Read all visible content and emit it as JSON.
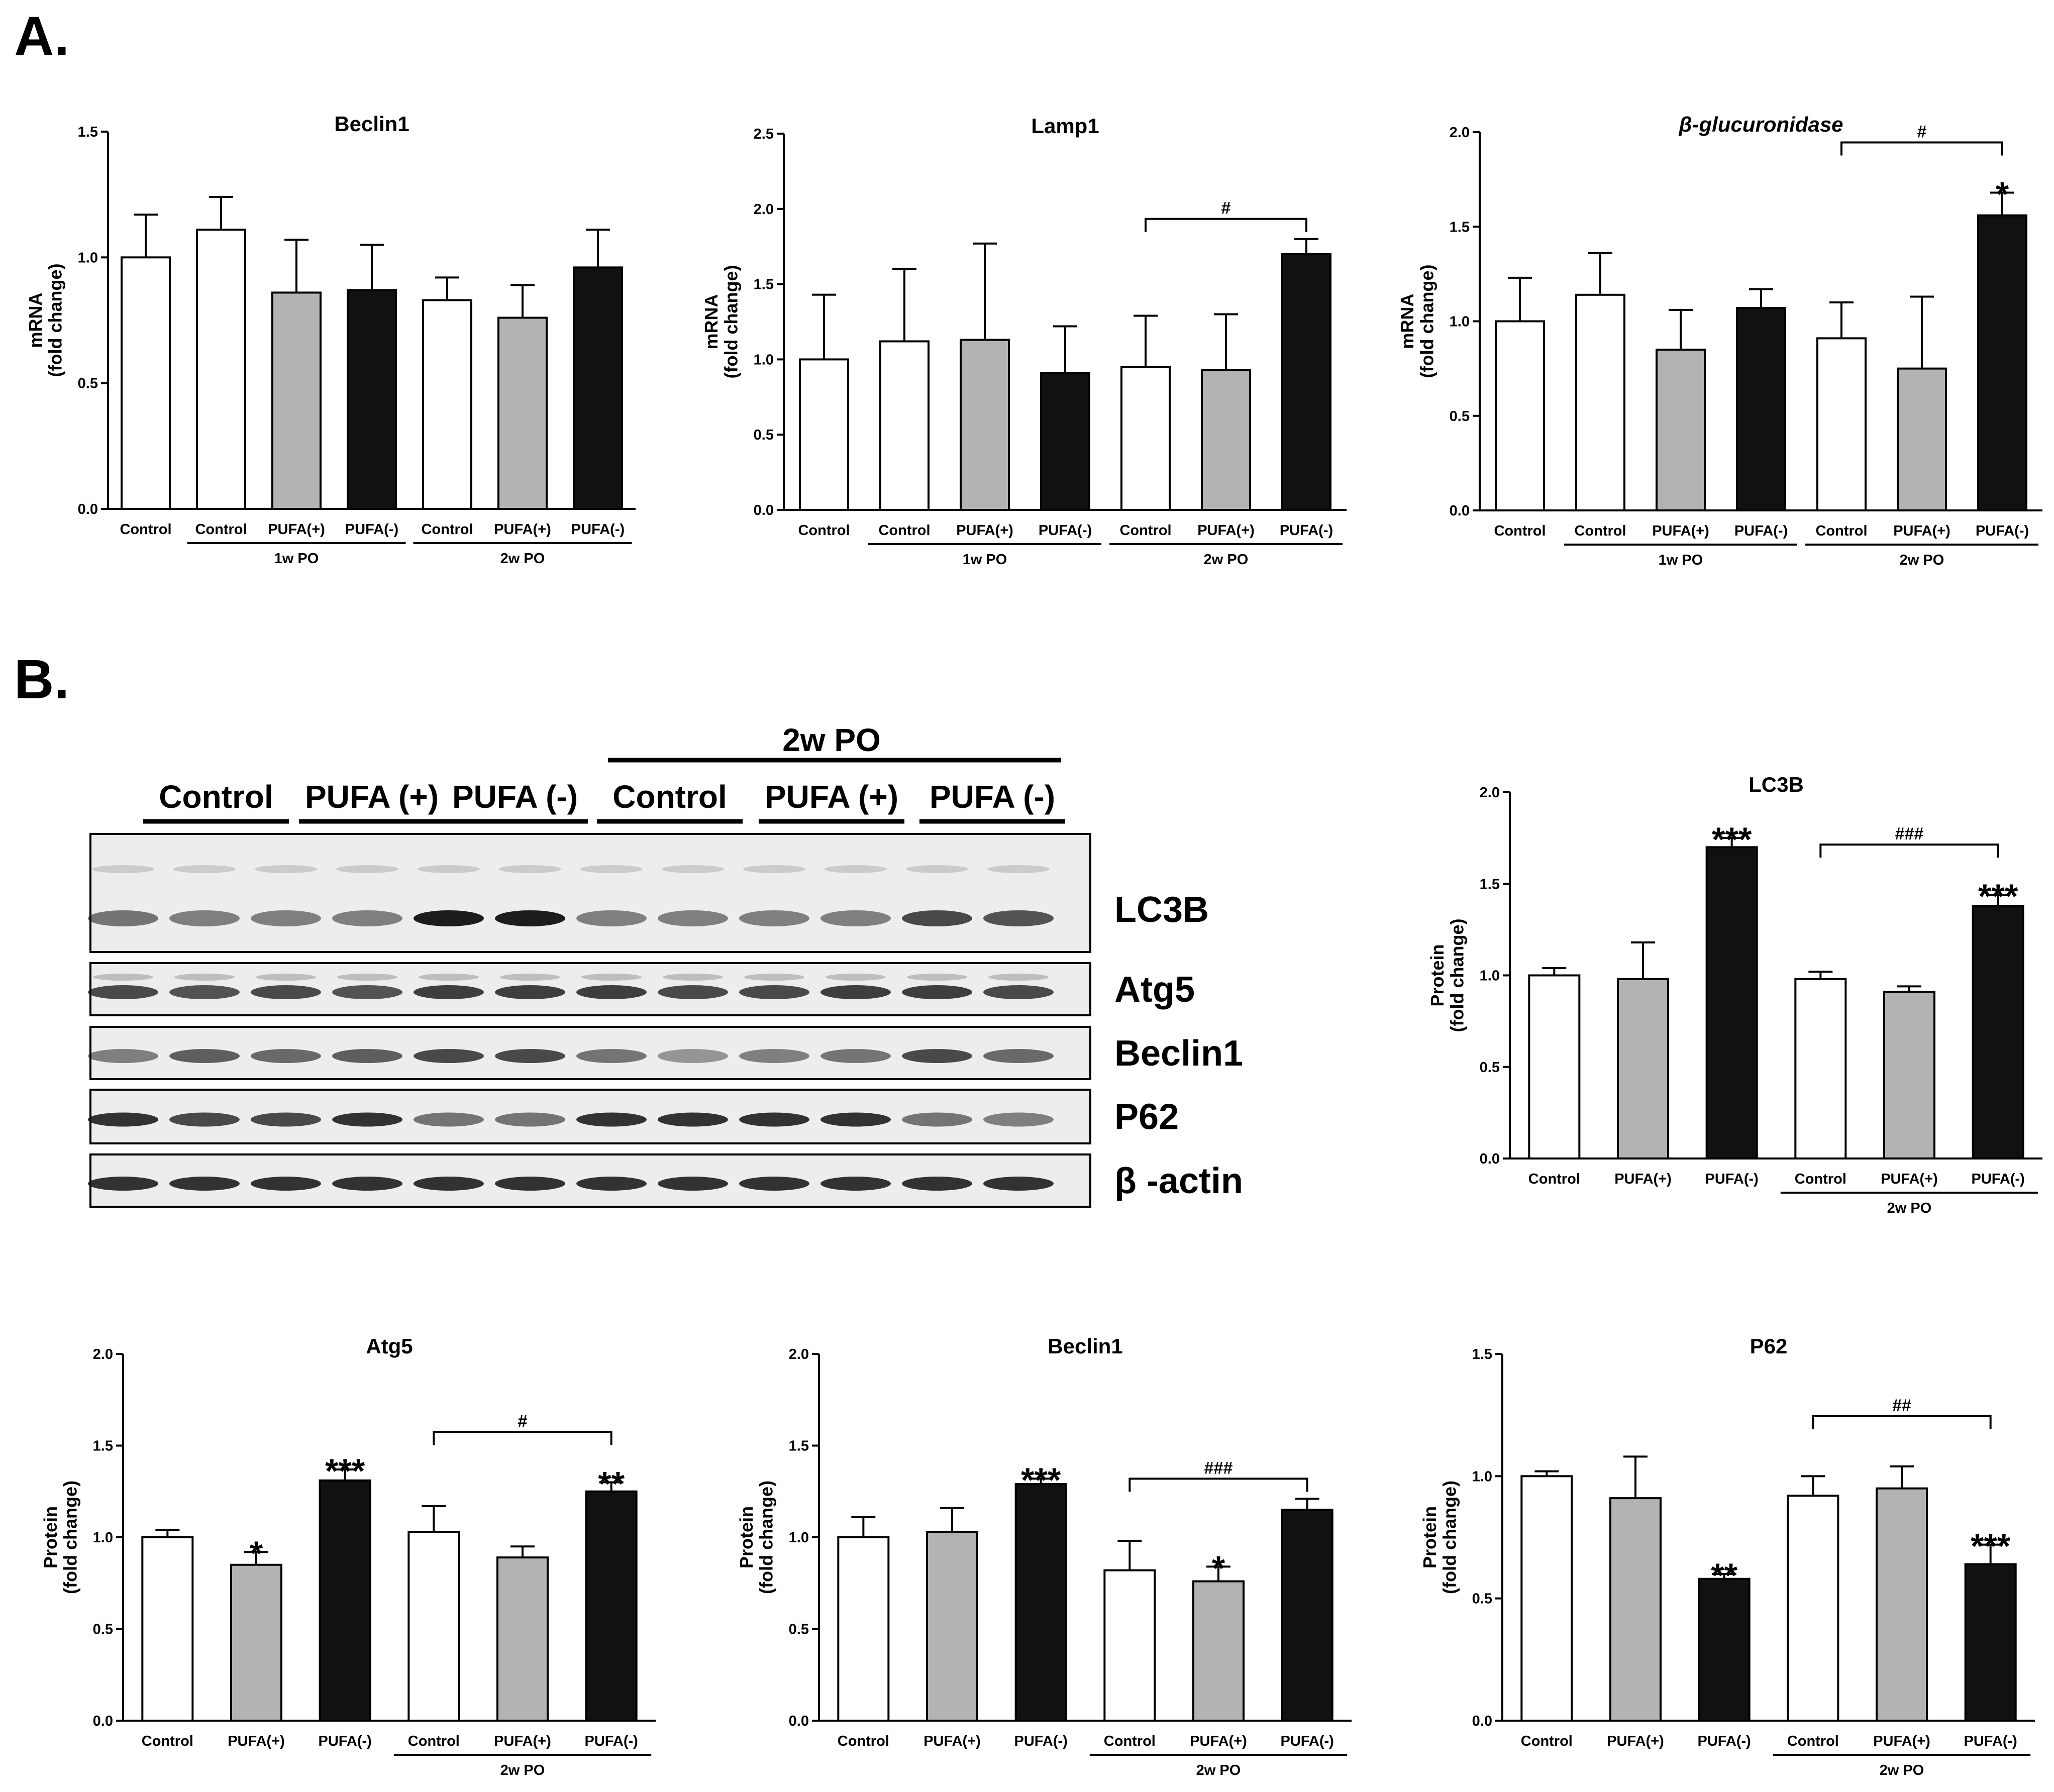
{
  "panels": {
    "a": "A.",
    "b": "B."
  },
  "colors": {
    "control": "#ffffff",
    "pufa_plus": "#b3b3b3",
    "pufa_minus": "#111111",
    "stroke": "#000000"
  },
  "blot": {
    "group_header": "2w PO",
    "lane_labels": [
      "Control",
      "PUFA (+)",
      "PUFA (-)",
      "Control",
      "PUFA (+)",
      "PUFA (-)"
    ],
    "rows": [
      "LC3B",
      "Atg5",
      "Beclin1",
      "P62",
      "β -actin"
    ]
  },
  "chart_data": [
    {
      "type": "bar",
      "title": "Beclin1",
      "ylabel": "mRNA (fold change)",
      "ylim": [
        0,
        1.5
      ],
      "yticks": [
        "0.0",
        "0.5",
        "1.0",
        "1.5"
      ],
      "categories": [
        "Control",
        "Control",
        "PUFA(+)",
        "PUFA(-)",
        "Control",
        "PUFA(+)",
        "PUFA(-)"
      ],
      "groups": [
        {
          "label": "1w PO",
          "from": 1,
          "to": 3
        },
        {
          "label": "2w PO",
          "from": 4,
          "to": 6
        }
      ],
      "values": [
        1.0,
        1.11,
        0.86,
        0.87,
        0.83,
        0.76,
        0.96
      ],
      "errors": [
        0.17,
        0.13,
        0.21,
        0.18,
        0.09,
        0.13,
        0.15
      ],
      "colors": [
        "control",
        "control",
        "pufa_plus",
        "pufa_minus",
        "control",
        "pufa_plus",
        "pufa_minus"
      ],
      "markers": [],
      "brackets": []
    },
    {
      "type": "bar",
      "title": "Lamp1",
      "ylabel": "mRNA (fold change)",
      "ylim": [
        0,
        2.5
      ],
      "yticks": [
        "0.0",
        "0.5",
        "1.0",
        "1.5",
        "2.0",
        "2.5"
      ],
      "categories": [
        "Control",
        "Control",
        "PUFA(+)",
        "PUFA(-)",
        "Control",
        "PUFA(+)",
        "PUFA(-)"
      ],
      "groups": [
        {
          "label": "1w PO",
          "from": 1,
          "to": 3
        },
        {
          "label": "2w PO",
          "from": 4,
          "to": 6
        }
      ],
      "values": [
        1.0,
        1.12,
        1.13,
        0.91,
        0.95,
        0.93,
        1.7
      ],
      "errors": [
        0.43,
        0.48,
        0.64,
        0.31,
        0.34,
        0.37,
        0.1
      ],
      "colors": [
        "control",
        "control",
        "pufa_plus",
        "pufa_minus",
        "control",
        "pufa_plus",
        "pufa_minus"
      ],
      "markers": [],
      "brackets": [
        {
          "from": 4,
          "to": 6,
          "label": "#"
        }
      ]
    },
    {
      "type": "bar",
      "title": "β-glucuronidase",
      "ylabel": "mRNA (fold change)",
      "ylim": [
        0,
        2.0
      ],
      "yticks": [
        "0.0",
        "0.5",
        "1.0",
        "1.5",
        "2.0"
      ],
      "categories": [
        "Control",
        "Control",
        "PUFA(+)",
        "PUFA(-)",
        "Control",
        "PUFA(+)",
        "PUFA(-)"
      ],
      "groups": [
        {
          "label": "1w PO",
          "from": 1,
          "to": 3
        },
        {
          "label": "2w PO",
          "from": 4,
          "to": 6
        }
      ],
      "values": [
        1.0,
        1.14,
        0.85,
        1.07,
        0.91,
        0.75,
        1.56
      ],
      "errors": [
        0.23,
        0.22,
        0.21,
        0.1,
        0.19,
        0.38,
        0.12
      ],
      "colors": [
        "control",
        "control",
        "pufa_plus",
        "pufa_minus",
        "control",
        "pufa_plus",
        "pufa_minus"
      ],
      "markers": [
        {
          "bar": 6,
          "label": "*"
        }
      ],
      "brackets": [
        {
          "from": 4,
          "to": 6,
          "label": "#"
        }
      ]
    },
    {
      "type": "bar",
      "title": "LC3B",
      "ylabel": "Protein (fold change)",
      "ylim": [
        0,
        2.0
      ],
      "yticks": [
        "0.0",
        "0.5",
        "1.0",
        "1.5",
        "2.0"
      ],
      "categories": [
        "Control",
        "PUFA(+)",
        "PUFA(-)",
        "Control",
        "PUFA(+)",
        "PUFA(-)"
      ],
      "groups": [
        {
          "label": "2w PO",
          "from": 3,
          "to": 5
        }
      ],
      "values": [
        1.0,
        0.98,
        1.7,
        0.98,
        0.91,
        1.38
      ],
      "errors": [
        0.04,
        0.2,
        0.05,
        0.04,
        0.03,
        0.06
      ],
      "colors": [
        "control",
        "pufa_plus",
        "pufa_minus",
        "control",
        "pufa_plus",
        "pufa_minus"
      ],
      "markers": [
        {
          "bar": 2,
          "label": "***"
        },
        {
          "bar": 5,
          "label": "***"
        }
      ],
      "brackets": [
        {
          "from": 3,
          "to": 5,
          "label": "###"
        }
      ]
    },
    {
      "type": "bar",
      "title": "Atg5",
      "ylabel": "Protein (fold change)",
      "ylim": [
        0,
        2.0
      ],
      "yticks": [
        "0.0",
        "0.5",
        "1.0",
        "1.5",
        "2.0"
      ],
      "categories": [
        "Control",
        "PUFA(+)",
        "PUFA(-)",
        "Control",
        "PUFA(+)",
        "PUFA(-)"
      ],
      "groups": [
        {
          "label": "2w PO",
          "from": 3,
          "to": 5
        }
      ],
      "values": [
        1.0,
        0.85,
        1.31,
        1.03,
        0.89,
        1.25
      ],
      "errors": [
        0.04,
        0.07,
        0.06,
        0.14,
        0.06,
        0.05
      ],
      "colors": [
        "control",
        "pufa_plus",
        "pufa_minus",
        "control",
        "pufa_plus",
        "pufa_minus"
      ],
      "markers": [
        {
          "bar": 1,
          "label": "*"
        },
        {
          "bar": 2,
          "label": "***"
        },
        {
          "bar": 5,
          "label": "**"
        }
      ],
      "brackets": [
        {
          "from": 3,
          "to": 5,
          "label": "#"
        }
      ]
    },
    {
      "type": "bar",
      "title": "Beclin1",
      "ylabel": "Protein (fold change)",
      "ylim": [
        0,
        2.0
      ],
      "yticks": [
        "0.0",
        "0.5",
        "1.0",
        "1.5",
        "2.0"
      ],
      "categories": [
        "Control",
        "PUFA(+)",
        "PUFA(-)",
        "Control",
        "PUFA(+)",
        "PUFA(-)"
      ],
      "groups": [
        {
          "label": "2w PO",
          "from": 3,
          "to": 5
        }
      ],
      "values": [
        1.0,
        1.03,
        1.29,
        0.82,
        0.76,
        1.15
      ],
      "errors": [
        0.11,
        0.13,
        0.03,
        0.16,
        0.08,
        0.06
      ],
      "colors": [
        "control",
        "pufa_plus",
        "pufa_minus",
        "control",
        "pufa_plus",
        "pufa_minus"
      ],
      "markers": [
        {
          "bar": 2,
          "label": "***"
        },
        {
          "bar": 4,
          "label": "*"
        }
      ],
      "brackets": [
        {
          "from": 3,
          "to": 5,
          "label": "###"
        }
      ]
    },
    {
      "type": "bar",
      "title": "P62",
      "ylabel": "Protein (fold change)",
      "ylim": [
        0,
        1.5
      ],
      "yticks": [
        "0.0",
        "0.5",
        "1.0",
        "1.5"
      ],
      "categories": [
        "Control",
        "PUFA(+)",
        "PUFA(-)",
        "Control",
        "PUFA(+)",
        "PUFA(-)"
      ],
      "groups": [
        {
          "label": "2w PO",
          "from": 3,
          "to": 5
        }
      ],
      "values": [
        1.0,
        0.91,
        0.58,
        0.92,
        0.95,
        0.64
      ],
      "errors": [
        0.02,
        0.17,
        0.02,
        0.08,
        0.09,
        0.08
      ],
      "colors": [
        "control",
        "pufa_plus",
        "pufa_minus",
        "control",
        "pufa_plus",
        "pufa_minus"
      ],
      "markers": [
        {
          "bar": 2,
          "label": "**"
        },
        {
          "bar": 5,
          "label": "***"
        }
      ],
      "brackets": [
        {
          "from": 3,
          "to": 5,
          "label": "##"
        }
      ]
    }
  ]
}
